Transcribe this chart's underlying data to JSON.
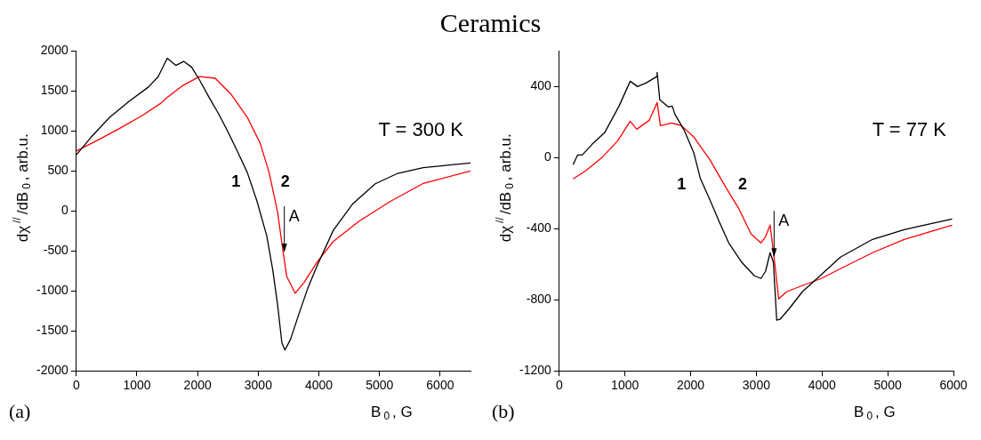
{
  "chart_data": [
    {
      "type": "line",
      "title": "Ceramics",
      "xlabel": "B$_{0}$, G",
      "ylabel": "dχ$^{//}$/dB$_{0}$, arb.u.",
      "xlim": [
        0,
        6500
      ],
      "ylim": [
        -2000,
        2000
      ],
      "xticks": [
        0,
        1000,
        2000,
        3000,
        4000,
        5000,
        6000
      ],
      "yticks": [
        -2000,
        -1500,
        -1000,
        -500,
        0,
        500,
        1000,
        1500,
        2000
      ],
      "grid": false,
      "legend": false,
      "marker": "none",
      "line_style": "solid",
      "series": [
        {
          "color": "#000000",
          "x": [
            0,
            240,
            550,
            870,
            1190,
            1350,
            1500,
            1640,
            1770,
            1900,
            2030,
            2190,
            2350,
            2500,
            2660,
            2820,
            2980,
            3140,
            3240,
            3320,
            3390,
            3440,
            3530,
            3670,
            3820,
            3980,
            4240,
            4560,
            4930,
            5300,
            5720,
            6090,
            6500
          ],
          "values": [
            700,
            920,
            1170,
            1370,
            1550,
            1680,
            1910,
            1820,
            1870,
            1800,
            1640,
            1420,
            1210,
            990,
            740,
            480,
            120,
            -310,
            -740,
            -1180,
            -1650,
            -1740,
            -1610,
            -1290,
            -960,
            -670,
            -240,
            90,
            340,
            470,
            540,
            570,
            600
          ]
        },
        {
          "color": "#ff0000",
          "x": [
            0,
            340,
            710,
            1080,
            1400,
            1500,
            1760,
            2030,
            2290,
            2550,
            2820,
            3030,
            3180,
            3320,
            3400,
            3470,
            3610,
            3760,
            3970,
            4240,
            4660,
            5180,
            5710,
            6500
          ],
          "values": [
            750,
            880,
            1030,
            1190,
            1350,
            1420,
            1570,
            1680,
            1660,
            1460,
            1170,
            850,
            480,
            -20,
            -460,
            -820,
            -1030,
            -890,
            -640,
            -380,
            -130,
            120,
            340,
            500
          ]
        }
      ],
      "annotations": [
        "T = 300 K",
        "(a)",
        "1",
        "2",
        {
          "text": "A",
          "x": 3430,
          "y": -520
        }
      ]
    },
    {
      "type": "line",
      "xlabel": "B$_{0}$, G",
      "ylabel": "dχ$^{//}$/dB$_{0}$, arb.u.",
      "xlim": [
        0,
        6000
      ],
      "ylim": [
        -1200,
        600
      ],
      "xticks": [
        0,
        1000,
        2000,
        3000,
        4000,
        5000,
        6000
      ],
      "yticks": [
        -1200,
        -800,
        -400,
        0,
        400
      ],
      "grid": false,
      "legend": false,
      "marker": "none",
      "line_style": "solid",
      "series": [
        {
          "color": "#000000",
          "x": [
            210,
            280,
            350,
            500,
            690,
            910,
            1080,
            1190,
            1320,
            1480,
            1490,
            1530,
            1660,
            1720,
            1760,
            1900,
            2050,
            2150,
            2290,
            2440,
            2580,
            2780,
            2970,
            3070,
            3140,
            3210,
            3260,
            3310,
            3360,
            3500,
            3700,
            3940,
            4280,
            4770,
            5250,
            5980
          ],
          "values": [
            -40,
            15,
            15,
            75,
            140,
            290,
            430,
            400,
            420,
            455,
            480,
            325,
            285,
            290,
            245,
            155,
            25,
            -120,
            -235,
            -365,
            -480,
            -590,
            -665,
            -680,
            -640,
            -535,
            -590,
            -915,
            -910,
            -850,
            -755,
            -675,
            -560,
            -460,
            -405,
            -345
          ]
        },
        {
          "color": "#ff0000",
          "x": [
            210,
            400,
            650,
            890,
            1080,
            1180,
            1370,
            1490,
            1540,
            1710,
            1860,
            2050,
            2290,
            2540,
            2730,
            2920,
            3070,
            3140,
            3210,
            3290,
            3340,
            3460,
            3700,
            3990,
            4280,
            4770,
            5250,
            5980
          ],
          "values": [
            -120,
            -75,
            0,
            95,
            205,
            160,
            210,
            310,
            180,
            195,
            180,
            115,
            -10,
            -170,
            -285,
            -430,
            -480,
            -445,
            -380,
            -625,
            -795,
            -755,
            -720,
            -680,
            -625,
            -535,
            -460,
            -380
          ]
        }
      ],
      "annotations": [
        "T = 77 K",
        "(b)",
        "1",
        "2",
        {
          "text": "A",
          "x": 3270,
          "y": -560
        }
      ]
    }
  ]
}
